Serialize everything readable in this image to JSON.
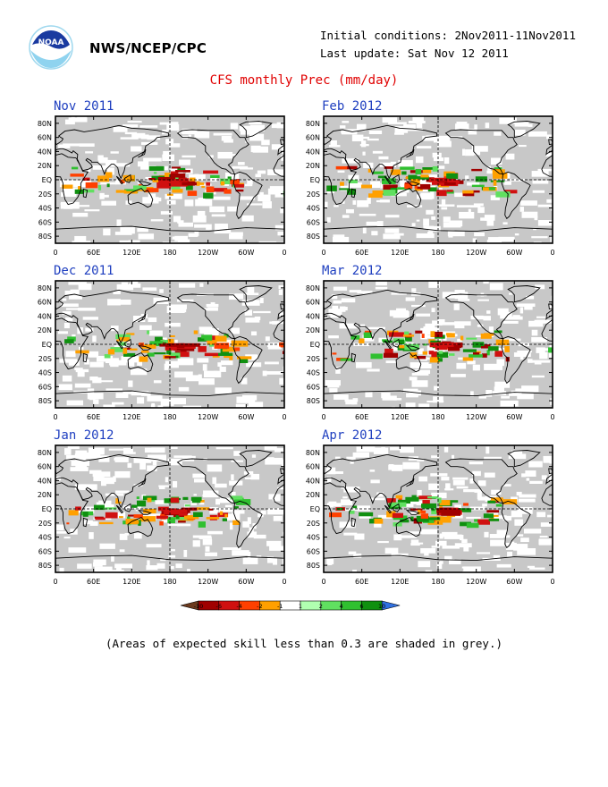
{
  "header": {
    "agency": "NWS/NCEP/CPC",
    "initial_conditions": "Initial conditions: 2Nov2011-11Nov2011",
    "last_update": "Last update: Sat Nov 12 2011",
    "title": "CFS monthly Prec (mm/day)"
  },
  "logo": {
    "text": "NOAA",
    "icon": "noaa-logo-icon"
  },
  "panels": [
    {
      "label": "Nov 2011"
    },
    {
      "label": "Feb 2012"
    },
    {
      "label": "Dec 2011"
    },
    {
      "label": "Mar 2012"
    },
    {
      "label": "Jan 2012"
    },
    {
      "label": "Apr 2012"
    }
  ],
  "axes": {
    "lat_labels": [
      "80N",
      "60N",
      "40N",
      "20N",
      "EQ",
      "20S",
      "40S",
      "60S",
      "80S"
    ],
    "lon_labels": [
      "0",
      "60E",
      "120E",
      "180",
      "120W",
      "60W",
      "0"
    ]
  },
  "colorbar": {
    "ticks": [
      "-10",
      "-6",
      "-4",
      "-2",
      "-1",
      "1",
      "2",
      "4",
      "6",
      "10"
    ],
    "colors": [
      "#6b3a1e",
      "#a00000",
      "#d01010",
      "#ff4000",
      "#ffa000",
      "#ffffff",
      "#b0ffb0",
      "#60e060",
      "#30c030",
      "#109010",
      "#3070e0"
    ]
  },
  "note": "(Areas of expected skill less than 0.3 are shaded in grey.)"
}
